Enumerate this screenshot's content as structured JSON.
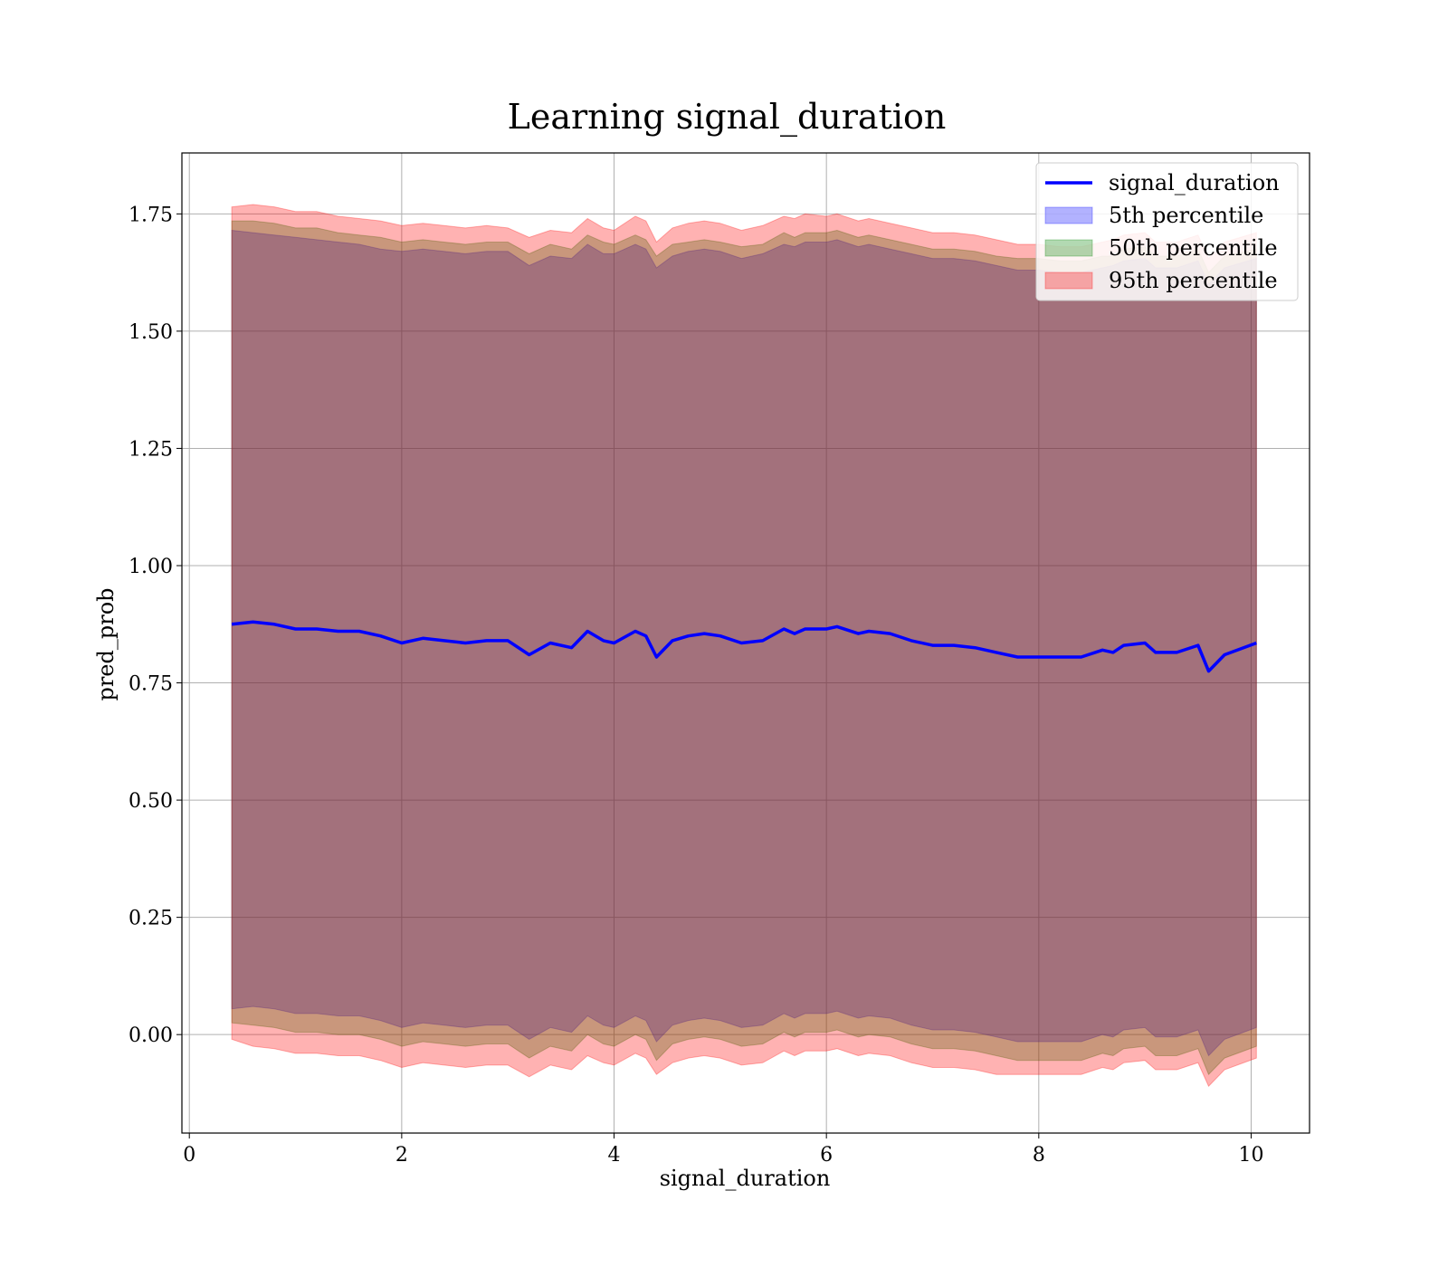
{
  "chart_data": {
    "type": "area",
    "title": "Learning signal_duration",
    "xlabel": "signal_duration",
    "ylabel": "pred_prob",
    "xlim": [
      -0.07,
      10.55
    ],
    "ylim": [
      -0.21,
      1.88
    ],
    "xticks": [
      0,
      2,
      4,
      6,
      8,
      10
    ],
    "xtick_labels": [
      "0",
      "2",
      "4",
      "6",
      "8",
      "10"
    ],
    "yticks": [
      0.0,
      0.25,
      0.5,
      0.75,
      1.0,
      1.25,
      1.5,
      1.75
    ],
    "ytick_labels": [
      "0.00",
      "0.25",
      "0.50",
      "0.75",
      "1.00",
      "1.25",
      "1.50",
      "1.75"
    ],
    "grid": true,
    "legend_position": "top-right",
    "colors": {
      "line": "#0000ff",
      "p5": "#0000ff",
      "p50": "#008000",
      "p95": "#ff0000"
    },
    "x": [
      0.4,
      0.6,
      0.8,
      1.0,
      1.2,
      1.4,
      1.6,
      1.8,
      2.0,
      2.2,
      2.4,
      2.6,
      2.8,
      3.0,
      3.2,
      3.4,
      3.6,
      3.75,
      3.9,
      4.0,
      4.2,
      4.3,
      4.4,
      4.55,
      4.7,
      4.85,
      5.0,
      5.2,
      5.4,
      5.6,
      5.7,
      5.8,
      6.0,
      6.1,
      6.3,
      6.4,
      6.6,
      6.8,
      7.0,
      7.2,
      7.4,
      7.6,
      7.8,
      8.0,
      8.2,
      8.4,
      8.6,
      8.7,
      8.8,
      9.0,
      9.1,
      9.3,
      9.5,
      9.6,
      9.75,
      10.05
    ],
    "series": [
      {
        "name": "signal_duration",
        "values": [
          0.875,
          0.88,
          0.875,
          0.865,
          0.865,
          0.86,
          0.86,
          0.85,
          0.835,
          0.845,
          0.84,
          0.835,
          0.84,
          0.84,
          0.81,
          0.835,
          0.825,
          0.86,
          0.84,
          0.835,
          0.86,
          0.85,
          0.805,
          0.84,
          0.85,
          0.855,
          0.85,
          0.835,
          0.84,
          0.865,
          0.855,
          0.865,
          0.865,
          0.87,
          0.855,
          0.86,
          0.855,
          0.84,
          0.83,
          0.83,
          0.825,
          0.815,
          0.805,
          0.805,
          0.805,
          0.805,
          0.82,
          0.815,
          0.83,
          0.835,
          0.815,
          0.815,
          0.83,
          0.775,
          0.81,
          0.835
        ]
      },
      {
        "name": "5th percentile",
        "values": [
          0.055,
          0.06,
          0.055,
          0.045,
          0.045,
          0.04,
          0.04,
          0.03,
          0.015,
          0.025,
          0.02,
          0.015,
          0.02,
          0.02,
          -0.01,
          0.015,
          0.005,
          0.04,
          0.02,
          0.015,
          0.04,
          0.03,
          -0.015,
          0.02,
          0.03,
          0.035,
          0.03,
          0.015,
          0.02,
          0.045,
          0.035,
          0.045,
          0.045,
          0.05,
          0.035,
          0.04,
          0.035,
          0.02,
          0.01,
          0.01,
          0.005,
          -0.005,
          -0.015,
          -0.015,
          -0.015,
          -0.015,
          0.0,
          -0.005,
          0.01,
          0.015,
          -0.005,
          -0.005,
          0.01,
          -0.045,
          -0.01,
          0.015
        ]
      },
      {
        "name": "50th percentile",
        "values": [
          0.025,
          0.02,
          0.015,
          0.005,
          0.005,
          0.0,
          0.0,
          -0.01,
          -0.025,
          -0.015,
          -0.02,
          -0.025,
          -0.02,
          -0.02,
          -0.05,
          -0.025,
          -0.035,
          0.0,
          -0.02,
          -0.025,
          0.0,
          -0.01,
          -0.055,
          -0.02,
          -0.01,
          -0.005,
          -0.01,
          -0.025,
          -0.02,
          0.005,
          -0.005,
          0.005,
          0.005,
          0.01,
          -0.005,
          0.0,
          -0.005,
          -0.02,
          -0.03,
          -0.03,
          -0.035,
          -0.045,
          -0.055,
          -0.055,
          -0.055,
          -0.055,
          -0.04,
          -0.045,
          -0.03,
          -0.025,
          -0.045,
          -0.045,
          -0.03,
          -0.085,
          -0.05,
          -0.025
        ]
      },
      {
        "name": "95th percentile",
        "values": [
          -0.01,
          -0.025,
          -0.03,
          -0.04,
          -0.04,
          -0.045,
          -0.045,
          -0.055,
          -0.07,
          -0.06,
          -0.065,
          -0.07,
          -0.065,
          -0.065,
          -0.09,
          -0.065,
          -0.075,
          -0.045,
          -0.06,
          -0.065,
          -0.04,
          -0.05,
          -0.085,
          -0.06,
          -0.05,
          -0.045,
          -0.05,
          -0.065,
          -0.06,
          -0.035,
          -0.045,
          -0.035,
          -0.035,
          -0.03,
          -0.045,
          -0.04,
          -0.045,
          -0.06,
          -0.07,
          -0.07,
          -0.075,
          -0.085,
          -0.085,
          -0.085,
          -0.085,
          -0.085,
          -0.07,
          -0.075,
          -0.06,
          -0.055,
          -0.075,
          -0.075,
          -0.06,
          -0.11,
          -0.075,
          -0.05
        ]
      }
    ],
    "band_upper": {
      "5th percentile": [
        1.715,
        1.71,
        1.705,
        1.7,
        1.695,
        1.69,
        1.685,
        1.675,
        1.67,
        1.675,
        1.67,
        1.665,
        1.67,
        1.67,
        1.64,
        1.66,
        1.655,
        1.685,
        1.665,
        1.665,
        1.685,
        1.675,
        1.635,
        1.66,
        1.67,
        1.675,
        1.67,
        1.655,
        1.665,
        1.685,
        1.68,
        1.69,
        1.69,
        1.695,
        1.68,
        1.685,
        1.675,
        1.665,
        1.655,
        1.655,
        1.65,
        1.64,
        1.63,
        1.63,
        1.625,
        1.625,
        1.635,
        1.64,
        1.65,
        1.655,
        1.635,
        1.635,
        1.65,
        1.6,
        1.635,
        1.655
      ],
      "50th percentile": [
        1.735,
        1.735,
        1.73,
        1.72,
        1.72,
        1.71,
        1.705,
        1.7,
        1.69,
        1.695,
        1.69,
        1.685,
        1.69,
        1.69,
        1.665,
        1.685,
        1.675,
        1.705,
        1.69,
        1.685,
        1.705,
        1.695,
        1.66,
        1.685,
        1.69,
        1.695,
        1.69,
        1.68,
        1.685,
        1.71,
        1.7,
        1.71,
        1.71,
        1.715,
        1.7,
        1.705,
        1.695,
        1.685,
        1.675,
        1.675,
        1.67,
        1.66,
        1.655,
        1.655,
        1.65,
        1.65,
        1.66,
        1.66,
        1.675,
        1.68,
        1.66,
        1.66,
        1.675,
        1.625,
        1.66,
        1.675
      ],
      "95th percentile": [
        1.765,
        1.77,
        1.765,
        1.755,
        1.755,
        1.745,
        1.74,
        1.735,
        1.725,
        1.73,
        1.725,
        1.72,
        1.725,
        1.72,
        1.7,
        1.715,
        1.71,
        1.74,
        1.72,
        1.715,
        1.745,
        1.735,
        1.69,
        1.72,
        1.73,
        1.735,
        1.73,
        1.715,
        1.725,
        1.745,
        1.74,
        1.75,
        1.745,
        1.75,
        1.735,
        1.74,
        1.73,
        1.72,
        1.71,
        1.71,
        1.705,
        1.695,
        1.685,
        1.685,
        1.68,
        1.68,
        1.69,
        1.695,
        1.705,
        1.71,
        1.69,
        1.69,
        1.705,
        1.655,
        1.69,
        1.71
      ]
    },
    "legend": [
      {
        "label": "signal_duration",
        "kind": "line",
        "color": "#0000ff"
      },
      {
        "label": "5th percentile",
        "kind": "patch",
        "color": "#0000ff"
      },
      {
        "label": "50th percentile",
        "kind": "patch",
        "color": "#008000"
      },
      {
        "label": "95th percentile",
        "kind": "patch",
        "color": "#ff0000"
      }
    ]
  }
}
